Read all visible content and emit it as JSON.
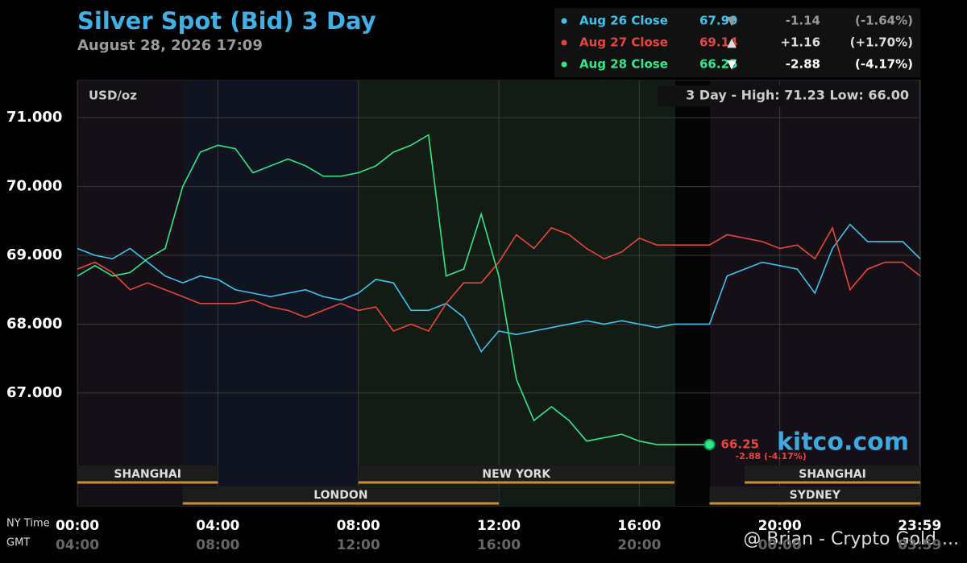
{
  "chart_data": {
    "type": "line",
    "title": "Silver Spot (Bid) 3 Day",
    "subtitle": "August 28, 2026 17:09",
    "unit_label": "USD/oz",
    "high_low": "3 Day - High: 71.23  Low: 66.00",
    "brand": "kitco.com",
    "watermark": "@ Brian - Crypto Gold ...",
    "x_row_labels": [
      "NY Time",
      "GMT"
    ],
    "x": [
      0,
      0.5,
      1,
      1.5,
      2,
      2.5,
      3,
      3.5,
      4,
      4.5,
      5,
      5.5,
      6,
      6.5,
      7,
      7.5,
      8,
      8.5,
      9,
      9.5,
      10,
      10.5,
      11,
      11.5,
      12,
      12.5,
      13,
      13.5,
      14,
      14.5,
      15,
      15.5,
      16,
      16.5,
      17,
      17.5,
      18,
      18.5,
      19,
      19.5,
      20,
      20.5,
      21,
      21.5,
      22,
      22.5,
      23,
      23.5,
      24
    ],
    "xlim": [
      0,
      24
    ],
    "xticks": [
      {
        "value": 0,
        "label": "00:00"
      },
      {
        "value": 4,
        "label": "04:00"
      },
      {
        "value": 8,
        "label": "08:00"
      },
      {
        "value": 12,
        "label": "12:00"
      },
      {
        "value": 16,
        "label": "16:00"
      },
      {
        "value": 20,
        "label": "20:00"
      },
      {
        "value": 23.983,
        "label": "23:59"
      }
    ],
    "gmt_ticks": [
      "04:00",
      "08:00",
      "12:00",
      "16:00",
      "20:00",
      "00:00",
      "03:59"
    ],
    "ylim": [
      65.36,
      71.54
    ],
    "yticks": [
      {
        "value": 67,
        "label": "67.000"
      },
      {
        "value": 68,
        "label": "68.000"
      },
      {
        "value": 69,
        "label": "69.000"
      },
      {
        "value": 70,
        "label": "70.000"
      },
      {
        "value": 71,
        "label": "71.000"
      }
    ],
    "grid": true,
    "series": [
      {
        "name": "Aug 26 Close",
        "color": "#3cc4ec",
        "legend": [
          "67.99",
          "▼",
          "-1.14",
          "(-1.64%)"
        ],
        "legend_color": "#9a9a9a",
        "values": [
          69.1,
          69.0,
          68.95,
          69.1,
          68.9,
          68.7,
          68.6,
          68.7,
          68.65,
          68.5,
          68.45,
          68.4,
          68.45,
          68.5,
          68.4,
          68.35,
          68.45,
          68.65,
          68.6,
          68.2,
          68.2,
          68.3,
          68.1,
          67.6,
          67.9,
          67.85,
          67.9,
          67.95,
          68.0,
          68.05,
          68.0,
          68.05,
          68.0,
          67.95,
          68.0,
          68.0,
          68.0,
          68.7,
          68.8,
          68.9,
          68.85,
          68.8,
          68.45,
          69.1,
          69.45,
          69.2,
          69.2,
          69.2,
          68.95
        ]
      },
      {
        "name": "Aug 27 Close",
        "color": "#e8463c",
        "legend": [
          "69.14",
          "▲",
          "+1.16",
          "(+1.70%)"
        ],
        "legend_color": "#dddddd",
        "values": [
          68.8,
          68.9,
          68.75,
          68.5,
          68.6,
          68.5,
          68.4,
          68.3,
          68.3,
          68.3,
          68.35,
          68.25,
          68.2,
          68.1,
          68.2,
          68.3,
          68.2,
          68.25,
          67.9,
          68.0,
          67.9,
          68.3,
          68.6,
          68.6,
          68.9,
          69.3,
          69.1,
          69.4,
          69.3,
          69.1,
          68.95,
          69.05,
          69.25,
          69.15,
          69.15,
          69.15,
          69.15,
          69.3,
          69.25,
          69.2,
          69.1,
          69.15,
          68.95,
          69.4,
          68.5,
          68.8,
          68.9,
          68.9,
          68.7
        ]
      },
      {
        "name": "Aug 28 Close",
        "color": "#2ee88a",
        "legend": [
          "66.25",
          "▼",
          "-2.88",
          "(-4.17%)"
        ],
        "legend_color": "#ffffff",
        "values": [
          68.7,
          68.85,
          68.7,
          68.75,
          68.95,
          69.1,
          70.0,
          70.5,
          70.6,
          70.55,
          70.2,
          70.3,
          70.4,
          70.3,
          70.15,
          70.15,
          70.2,
          70.3,
          70.5,
          70.6,
          70.75,
          68.7,
          68.8,
          69.6,
          68.7,
          67.2,
          66.6,
          66.8,
          66.6,
          66.3,
          66.35,
          66.4,
          66.3,
          66.25,
          66.25,
          66.25,
          66.25,
          null,
          null,
          null,
          null,
          null,
          null,
          null,
          null,
          null,
          null,
          null,
          null
        ],
        "end_label": "66.25",
        "end_sublabel": "-2.88 (-4.17%)"
      }
    ],
    "sessions": [
      {
        "name": "SHANGHAI",
        "start": 0,
        "end": 4,
        "row": 0
      },
      {
        "name": "NEW YORK",
        "start": 8,
        "end": 17,
        "row": 0
      },
      {
        "name": "SHANGHAI",
        "start": 19,
        "end": 24,
        "row": 0
      },
      {
        "name": "LONDON",
        "start": 3,
        "end": 12,
        "row": 1
      },
      {
        "name": "SYDNEY",
        "start": 18,
        "end": 24,
        "row": 1
      }
    ]
  }
}
